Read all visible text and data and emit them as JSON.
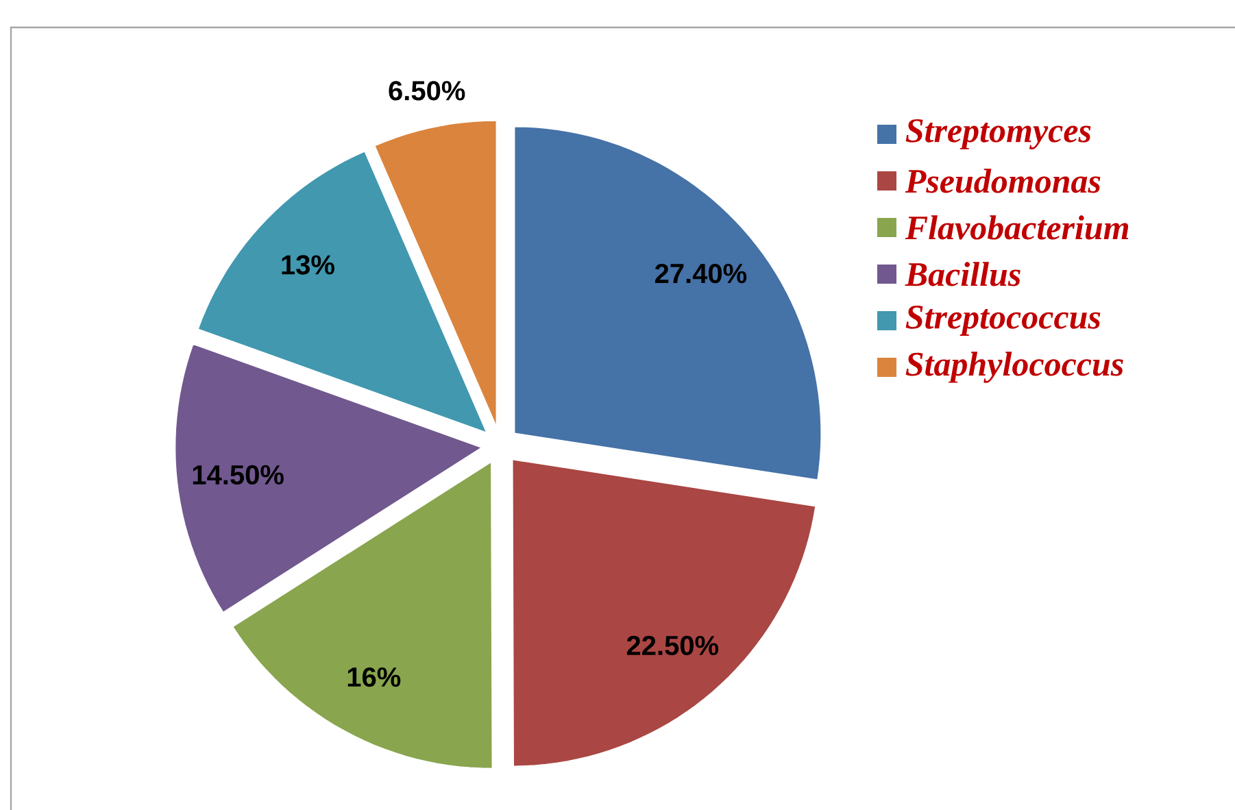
{
  "chart_data": {
    "type": "pie",
    "categories": [
      "*Streptomyces*",
      "*Pseudomonas*",
      "*Flavobacterium*",
      "*Bacillus*",
      "*Streptococcus*",
      "*Staphylococcus*"
    ],
    "values": [
      27.4,
      22.5,
      16,
      14.5,
      13,
      6.5
    ],
    "value_labels": [
      "27.40%",
      "22.50%",
      "16%",
      "14.50%",
      "13%",
      "6.50%"
    ],
    "colors": [
      "#4572a7",
      "#aa4643",
      "#89a54e",
      "#71588f",
      "#4198af",
      "#db843d"
    ],
    "legend": "right"
  }
}
